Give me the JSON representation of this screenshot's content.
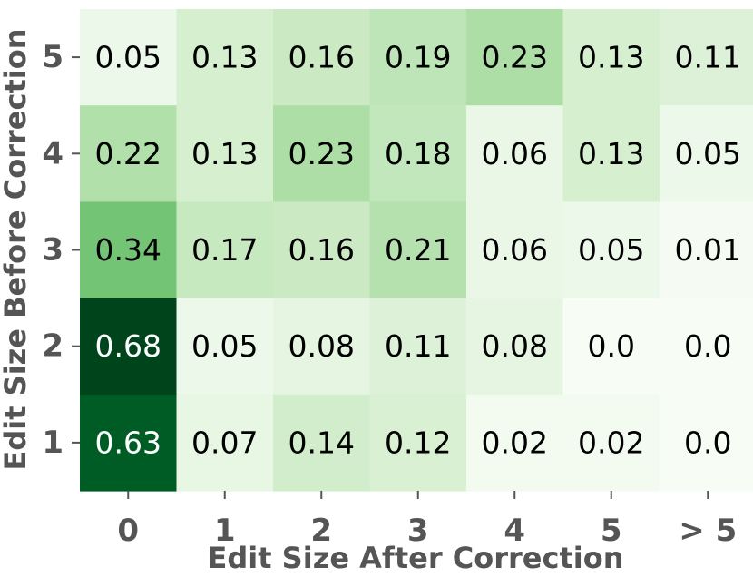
{
  "chart_data": {
    "type": "heatmap",
    "xlabel": "Edit Size After Correction",
    "ylabel": "Edit Size Before Correction",
    "x_categories": [
      "0",
      "1",
      "2",
      "3",
      "4",
      "5",
      "> 5"
    ],
    "y_categories": [
      "5",
      "4",
      "3",
      "2",
      "1"
    ],
    "values": [
      [
        0.05,
        0.13,
        0.16,
        0.19,
        0.23,
        0.13,
        0.11
      ],
      [
        0.22,
        0.13,
        0.23,
        0.18,
        0.06,
        0.13,
        0.05
      ],
      [
        0.34,
        0.17,
        0.16,
        0.21,
        0.06,
        0.05,
        0.01
      ],
      [
        0.68,
        0.05,
        0.08,
        0.11,
        0.08,
        0.0,
        0.0
      ],
      [
        0.63,
        0.07,
        0.14,
        0.12,
        0.02,
        0.02,
        0.0
      ]
    ],
    "value_labels": [
      [
        "0.05",
        "0.13",
        "0.16",
        "0.19",
        "0.23",
        "0.13",
        "0.11"
      ],
      [
        "0.22",
        "0.13",
        "0.23",
        "0.18",
        "0.06",
        "0.13",
        "0.05"
      ],
      [
        "0.34",
        "0.17",
        "0.16",
        "0.21",
        "0.06",
        "0.05",
        "0.01"
      ],
      [
        "0.68",
        "0.05",
        "0.08",
        "0.11",
        "0.08",
        "0.0",
        "0.0"
      ],
      [
        "0.63",
        "0.07",
        "0.14",
        "0.12",
        "0.02",
        "0.02",
        "0.0"
      ]
    ],
    "colormap": "Greens",
    "color_range": [
      0.0,
      0.68
    ],
    "colorbar": false,
    "grid": false
  }
}
